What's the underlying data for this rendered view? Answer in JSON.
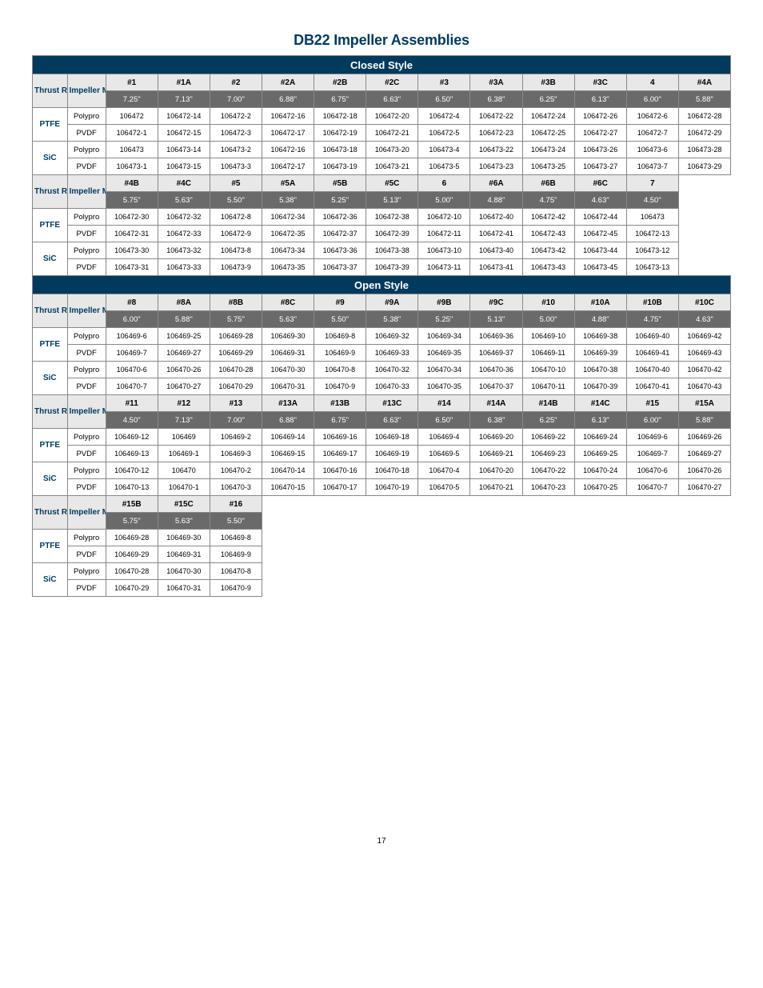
{
  "title": "DB22 Impeller Assemblies",
  "page_number": "17",
  "banners": {
    "closed": "Closed Style",
    "open": "Open Style"
  },
  "header_labels": {
    "thrust_ring": "Thrust Ring",
    "impeller_material": "Impeller Material"
  },
  "ring_labels": {
    "ptfe": "PTFE",
    "sic": "SiC"
  },
  "mat_labels": {
    "polypro": "Polypro",
    "pvdf": "PVDF"
  },
  "colors": {
    "brand_navy": "#003a5d",
    "header_gray": "#e8e8e8",
    "size_row_gray": "#6a6a6a",
    "border": "#888888"
  },
  "sections": [
    {
      "banner_key": "closed",
      "groups": [
        {
          "cols": [
            "#1",
            "#1A",
            "#2",
            "#2A",
            "#2B",
            "#2C",
            "#3",
            "#3A",
            "#3B",
            "#3C",
            "4",
            "#4A"
          ],
          "sizes": [
            "7.25\"",
            "7.13\"",
            "7.00\"",
            "6.88\"",
            "6.75\"",
            "6.63\"",
            "6.50\"",
            "6.38\"",
            "6.25\"",
            "6.13\"",
            "6.00\"",
            "5.88\""
          ],
          "rows": [
            {
              "ring": "ptfe",
              "mat": "polypro",
              "cells": [
                "106472",
                "106472-14",
                "106472-2",
                "106472-16",
                "106472-18",
                "106472-20",
                "106472-4",
                "106472-22",
                "106472-24",
                "106472-26",
                "106472-6",
                "106472-28"
              ]
            },
            {
              "ring": "ptfe",
              "mat": "pvdf",
              "cells": [
                "106472-1",
                "106472-15",
                "106472-3",
                "106472-17",
                "106472-19",
                "106472-21",
                "106472-5",
                "106472-23",
                "106472-25",
                "106472-27",
                "106472-7",
                "106472-29"
              ]
            },
            {
              "ring": "sic",
              "mat": "polypro",
              "cells": [
                "106473",
                "106473-14",
                "106473-2",
                "106472-16",
                "106473-18",
                "106473-20",
                "106473-4",
                "106473-22",
                "106473-24",
                "106473-26",
                "106473-6",
                "106473-28"
              ]
            },
            {
              "ring": "sic",
              "mat": "pvdf",
              "cells": [
                "106473-1",
                "106473-15",
                "106473-3",
                "106472-17",
                "106473-19",
                "106473-21",
                "106473-5",
                "106473-23",
                "106473-25",
                "106473-27",
                "106473-7",
                "106473-29"
              ]
            }
          ]
        },
        {
          "cols": [
            "#4B",
            "#4C",
            "#5",
            "#5A",
            "#5B",
            "#5C",
            "6",
            "#6A",
            "#6B",
            "#6C",
            "7",
            ""
          ],
          "sizes": [
            "5.75\"",
            "5.63\"",
            "5.50\"",
            "5.38\"",
            "5.25\"",
            "5.13\"",
            "5.00\"",
            "4.88\"",
            "4.75\"",
            "4.63\"",
            "4.50\"",
            ""
          ],
          "rows": [
            {
              "ring": "ptfe",
              "mat": "polypro",
              "cells": [
                "106472-30",
                "106472-32",
                "106472-8",
                "106472-34",
                "106472-36",
                "106472-38",
                "106472-10",
                "106472-40",
                "106472-42",
                "106472-44",
                "106473",
                ""
              ]
            },
            {
              "ring": "ptfe",
              "mat": "pvdf",
              "cells": [
                "106472-31",
                "106472-33",
                "106472-9",
                "106472-35",
                "106472-37",
                "106472-39",
                "106472-11",
                "106472-41",
                "106472-43",
                "106472-45",
                "106472-13",
                ""
              ]
            },
            {
              "ring": "sic",
              "mat": "polypro",
              "cells": [
                "106473-30",
                "106473-32",
                "106473-8",
                "106473-34",
                "106473-36",
                "106473-38",
                "106473-10",
                "106473-40",
                "106473-42",
                "106473-44",
                "106473-12",
                ""
              ]
            },
            {
              "ring": "sic",
              "mat": "pvdf",
              "cells": [
                "106473-31",
                "106473-33",
                "106473-9",
                "106473-35",
                "106473-37",
                "106473-39",
                "106473-11",
                "106473-41",
                "106473-43",
                "106473-45",
                "106473-13",
                ""
              ]
            }
          ]
        }
      ]
    },
    {
      "banner_key": "open",
      "groups": [
        {
          "cols": [
            "#8",
            "#8A",
            "#8B",
            "#8C",
            "#9",
            "#9A",
            "#9B",
            "#9C",
            "#10",
            "#10A",
            "#10B",
            "#10C"
          ],
          "sizes": [
            "6.00\"",
            "5.88\"",
            "5.75\"",
            "5.63\"",
            "5.50\"",
            "5.38\"",
            "5.25\"",
            "5.13\"",
            "5.00\"",
            "4.88\"",
            "4.75\"",
            "4.63\""
          ],
          "rows": [
            {
              "ring": "ptfe",
              "mat": "polypro",
              "cells": [
                "106469-6",
                "106469-25",
                "106469-28",
                "106469-30",
                "106469-8",
                "106469-32",
                "106469-34",
                "106469-36",
                "106469-10",
                "106469-38",
                "106469-40",
                "106469-42"
              ]
            },
            {
              "ring": "ptfe",
              "mat": "pvdf",
              "cells": [
                "106469-7",
                "106469-27",
                "106469-29",
                "106469-31",
                "106469-9",
                "106469-33",
                "106469-35",
                "106469-37",
                "106469-11",
                "106469-39",
                "106469-41",
                "106469-43"
              ]
            },
            {
              "ring": "sic",
              "mat": "polypro",
              "cells": [
                "106470-6",
                "106470-26",
                "106470-28",
                "106470-30",
                "106470-8",
                "106470-32",
                "106470-34",
                "106470-36",
                "106470-10",
                "106470-38",
                "106470-40",
                "106470-42"
              ]
            },
            {
              "ring": "sic",
              "mat": "pvdf",
              "cells": [
                "106470-7",
                "106470-27",
                "106470-29",
                "106470-31",
                "106470-9",
                "106470-33",
                "106470-35",
                "106470-37",
                "106470-11",
                "106470-39",
                "106470-41",
                "106470-43"
              ]
            }
          ]
        },
        {
          "cols": [
            "#11",
            "#12",
            "#13",
            "#13A",
            "#13B",
            "#13C",
            "#14",
            "#14A",
            "#14B",
            "#14C",
            "#15",
            "#15A"
          ],
          "sizes": [
            "4.50\"",
            "7.13\"",
            "7.00\"",
            "6.88\"",
            "6.75\"",
            "6.63\"",
            "6.50\"",
            "6.38\"",
            "6.25\"",
            "6.13\"",
            "6.00\"",
            "5.88\""
          ],
          "rows": [
            {
              "ring": "ptfe",
              "mat": "polypro",
              "cells": [
                "106469-12",
                "106469",
                "106469-2",
                "106469-14",
                "106469-16",
                "106469-18",
                "106469-4",
                "106469-20",
                "106469-22",
                "106469-24",
                "106469-6",
                "106469-26"
              ]
            },
            {
              "ring": "ptfe",
              "mat": "pvdf",
              "cells": [
                "106469-13",
                "106469-1",
                "106469-3",
                "106469-15",
                "106469-17",
                "106469-19",
                "106469-5",
                "106469-21",
                "106469-23",
                "106469-25",
                "106469-7",
                "106469-27"
              ]
            },
            {
              "ring": "sic",
              "mat": "polypro",
              "cells": [
                "106470-12",
                "106470",
                "106470-2",
                "106470-14",
                "106470-16",
                "106470-18",
                "106470-4",
                "106470-20",
                "106470-22",
                "106470-24",
                "106470-6",
                "106470-26"
              ]
            },
            {
              "ring": "sic",
              "mat": "pvdf",
              "cells": [
                "106470-13",
                "106470-1",
                "106470-3",
                "106470-15",
                "106470-17",
                "106470-19",
                "106470-5",
                "106470-21",
                "106470-23",
                "106470-25",
                "106470-7",
                "106470-27"
              ]
            }
          ]
        },
        {
          "cols": [
            "#15B",
            "#15C",
            "#16",
            "",
            "",
            "",
            "",
            "",
            "",
            "",
            "",
            ""
          ],
          "sizes": [
            "5.75\"",
            "5.63\"",
            "5.50\"",
            "",
            "",
            "",
            "",
            "",
            "",
            "",
            "",
            ""
          ],
          "rows": [
            {
              "ring": "ptfe",
              "mat": "polypro",
              "cells": [
                "106469-28",
                "106469-30",
                "106469-8",
                "",
                "",
                "",
                "",
                "",
                "",
                "",
                "",
                ""
              ]
            },
            {
              "ring": "ptfe",
              "mat": "pvdf",
              "cells": [
                "106469-29",
                "106469-31",
                "106469-9",
                "",
                "",
                "",
                "",
                "",
                "",
                "",
                "",
                ""
              ]
            },
            {
              "ring": "sic",
              "mat": "polypro",
              "cells": [
                "106470-28",
                "106470-30",
                "106470-8",
                "",
                "",
                "",
                "",
                "",
                "",
                "",
                "",
                ""
              ]
            },
            {
              "ring": "sic",
              "mat": "pvdf",
              "cells": [
                "106470-29",
                "106470-31",
                "106470-9",
                "",
                "",
                "",
                "",
                "",
                "",
                "",
                "",
                ""
              ]
            }
          ]
        }
      ]
    }
  ]
}
